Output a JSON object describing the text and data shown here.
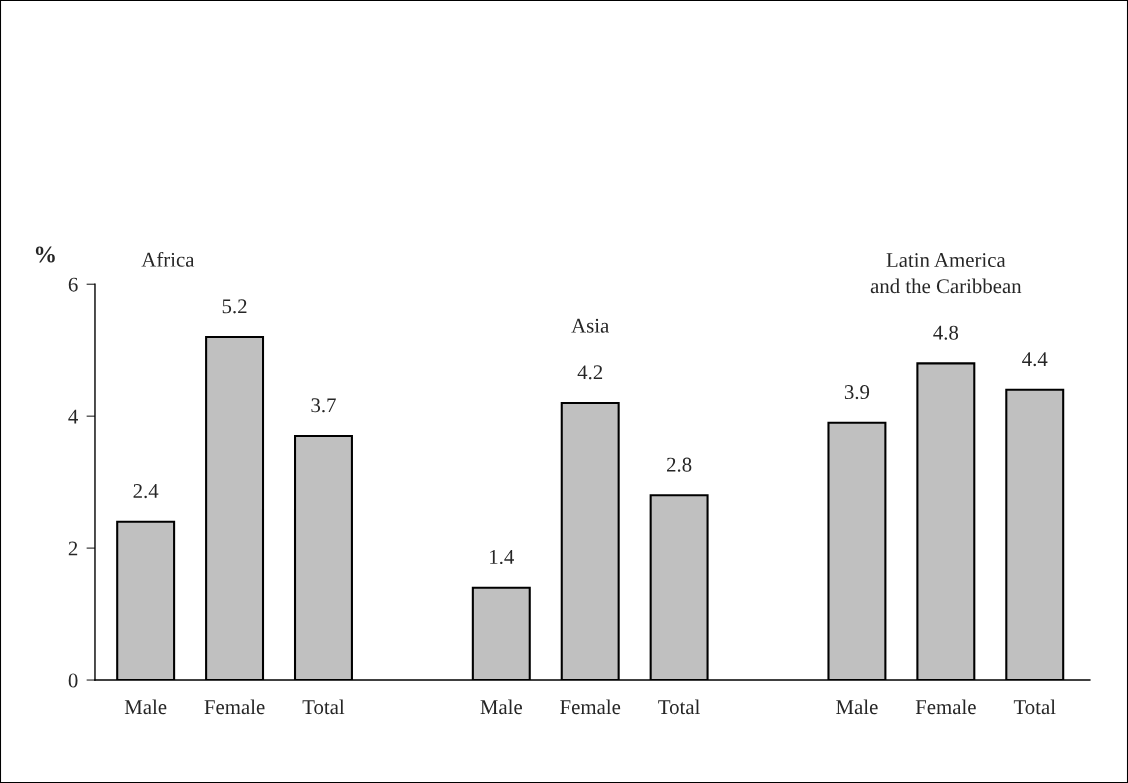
{
  "chart_data": {
    "type": "bar",
    "categories": [
      "Male",
      "Female",
      "Total",
      null,
      "Male",
      "Female",
      "Total",
      null,
      "Male",
      "Female",
      "Total"
    ],
    "values": [
      2.4,
      5.2,
      3.7,
      null,
      1.4,
      4.2,
      2.8,
      null,
      3.9,
      4.8,
      4.4
    ],
    "color": "#c0c0c0",
    "ylabel": "%",
    "ylim": [
      0,
      6
    ],
    "yticks": [
      0,
      2,
      4,
      6
    ],
    "data_labels": true,
    "grid": false,
    "legend": false,
    "annotations": [
      "Africa",
      "Asia",
      "Latin America\nand the Caribbean"
    ]
  }
}
